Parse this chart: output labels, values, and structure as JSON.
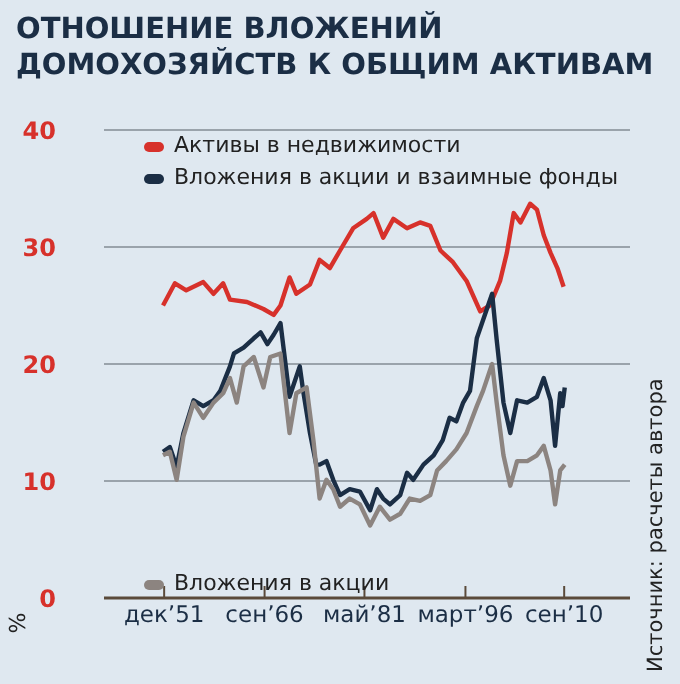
{
  "chart_data": {
    "type": "line",
    "title": "ОТНОШЕНИЕ ВЛОЖЕНИЙ ДОМОХОЗЯЙСТВ К ОБЩИМ АКТИВАМ",
    "ylabel": "%",
    "annotations": [
      "Источник: расчеты автора"
    ],
    "xlim": [
      "1943-02",
      "2020-05"
    ],
    "xticks": [
      {
        "value": "1951-12",
        "label": "дек’51"
      },
      {
        "value": "1966-09",
        "label": "сен’66"
      },
      {
        "value": "1981-05",
        "label": "май’81"
      },
      {
        "value": "1996-03",
        "label": "март’96"
      },
      {
        "value": "2010-09",
        "label": "сен’10"
      }
    ],
    "ylim": [
      0,
      40
    ],
    "yticks": [
      0,
      10,
      20,
      30,
      40
    ],
    "grid": "y",
    "legend": "left",
    "marker": "none",
    "line_style": "solid",
    "series": [
      {
        "name": "Активы в недвижимости",
        "color": "#d7312b",
        "x": [
          "1951-10",
          "1953-07",
          "1955-03",
          "1957-09",
          "1959-03",
          "1960-08",
          "1961-08",
          "1964-02",
          "1966-07",
          "1968-01",
          "1969-01",
          "1970-05",
          "1971-05",
          "1973-05",
          "1974-10",
          "1976-04",
          "1977-10",
          "1979-09",
          "1981-09",
          "1982-09",
          "1984-02",
          "1985-08",
          "1987-08",
          "1989-07",
          "1991-01",
          "1992-07",
          "1994-05",
          "1996-05",
          "1998-05",
          "1999-10",
          "2001-04",
          "2002-04",
          "2003-04",
          "2004-04",
          "2005-09",
          "2006-09",
          "2007-09",
          "2008-09",
          "2009-09",
          "2010-08"
        ],
        "values": [
          25.0,
          26.9,
          26.3,
          27.0,
          26.0,
          26.9,
          25.5,
          25.3,
          24.7,
          24.2,
          25.0,
          27.4,
          26.0,
          26.8,
          28.9,
          28.2,
          29.7,
          31.6,
          32.4,
          32.9,
          30.8,
          32.4,
          31.6,
          32.1,
          31.8,
          29.7,
          28.7,
          27.1,
          24.5,
          25.0,
          27.1,
          29.5,
          32.9,
          32.1,
          33.7,
          33.2,
          31.0,
          29.5,
          28.2,
          26.6
        ]
      },
      {
        "name": "Вложения в акции и взаимные фонды",
        "color": "#1b2e45",
        "x": [
          "1951-10",
          "1952-10",
          "1953-10",
          "1954-10",
          "1956-04",
          "1957-09",
          "1959-03",
          "1960-03",
          "1961-08",
          "1962-03",
          "1963-08",
          "1965-02",
          "1966-02",
          "1967-02",
          "1968-01",
          "1969-01",
          "1970-05",
          "1971-11",
          "1972-05",
          "1973-05",
          "1974-04",
          "1974-10",
          "1975-10",
          "1976-10",
          "1977-10",
          "1979-03",
          "1980-09",
          "1982-03",
          "1983-03",
          "1984-02",
          "1985-02",
          "1986-08",
          "1987-08",
          "1988-07",
          "1990-01",
          "1991-07",
          "1992-11",
          "1993-11",
          "1994-11",
          "1995-11",
          "1996-11",
          "1997-11",
          "2000-02",
          "2000-10",
          "2001-10",
          "2002-10",
          "2003-10",
          "2005-04",
          "2006-09",
          "2007-09",
          "2008-09",
          "2009-05",
          "2010-02",
          "2010-06",
          "2010-10"
        ],
        "values": [
          12.5,
          12.9,
          11.2,
          14.1,
          16.9,
          16.4,
          16.9,
          17.7,
          19.8,
          20.9,
          21.4,
          22.2,
          22.7,
          21.7,
          22.5,
          23.5,
          17.2,
          19.8,
          17.7,
          14.1,
          11.4,
          11.4,
          11.7,
          10.1,
          8.8,
          9.3,
          9.1,
          7.5,
          9.3,
          8.5,
          8.0,
          8.8,
          10.7,
          10.1,
          11.4,
          12.2,
          13.5,
          15.4,
          15.1,
          16.7,
          17.7,
          22.2,
          26.0,
          22.1,
          16.7,
          14.1,
          16.9,
          16.7,
          17.2,
          18.8,
          16.9,
          13.0,
          17.5,
          16.4,
          18.0
        ]
      },
      {
        "name": "Вложения в акции",
        "color": "#8c8480",
        "x": [
          "1951-10",
          "1952-10",
          "1953-10",
          "1954-10",
          "1956-04",
          "1957-09",
          "1959-03",
          "1960-08",
          "1961-08",
          "1962-08",
          "1963-08",
          "1965-02",
          "1966-07",
          "1967-07",
          "1969-01",
          "1970-05",
          "1971-05",
          "1972-11",
          "1973-11",
          "1974-10",
          "1975-10",
          "1976-10",
          "1977-10",
          "1979-03",
          "1980-09",
          "1982-03",
          "1983-08",
          "1985-02",
          "1986-08",
          "1988-01",
          "1989-07",
          "1991-01",
          "1992-01",
          "1993-05",
          "1994-11",
          "1996-05",
          "1997-11",
          "1998-10",
          "2000-02",
          "2000-10",
          "2001-10",
          "2002-10",
          "2003-10",
          "2005-04",
          "2006-09",
          "2007-09",
          "2008-09",
          "2009-05",
          "2010-02",
          "2010-10"
        ],
        "values": [
          12.2,
          12.5,
          10.1,
          13.8,
          16.7,
          15.4,
          16.7,
          17.5,
          18.8,
          16.7,
          19.8,
          20.6,
          18.0,
          20.6,
          20.9,
          14.1,
          17.5,
          18.0,
          13.5,
          8.5,
          10.1,
          9.3,
          7.8,
          8.5,
          8.0,
          6.2,
          7.8,
          6.7,
          7.2,
          8.5,
          8.3,
          8.8,
          10.9,
          11.7,
          12.7,
          14.1,
          16.4,
          17.7,
          20.0,
          16.7,
          12.2,
          9.6,
          11.7,
          11.7,
          12.2,
          13.0,
          10.9,
          8.0,
          10.9,
          11.4
        ]
      }
    ]
  }
}
